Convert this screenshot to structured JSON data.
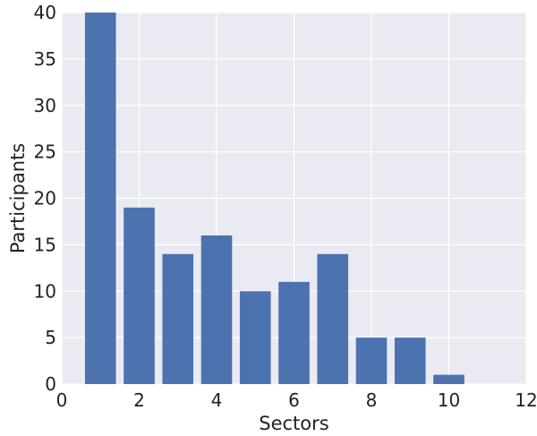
{
  "chart_data": {
    "type": "bar",
    "xlabel": "Sectors",
    "ylabel": "Participants",
    "x": [
      1,
      2,
      3,
      4,
      5,
      6,
      7,
      8,
      9,
      10
    ],
    "values": [
      40,
      19,
      14,
      16,
      10,
      11,
      14,
      5,
      5,
      1
    ],
    "xlim": [
      0,
      12
    ],
    "ylim": [
      0,
      40
    ],
    "xticks": [
      "0",
      "2",
      "4",
      "6",
      "8",
      "10",
      "12"
    ],
    "yticks": [
      "0",
      "5",
      "10",
      "15",
      "20",
      "25",
      "30",
      "35",
      "40"
    ],
    "grid": true,
    "legend": "none",
    "colors": {
      "bar": "#4c72b0",
      "plot_background": "#eaeaf2",
      "grid": "#ffffff"
    }
  }
}
